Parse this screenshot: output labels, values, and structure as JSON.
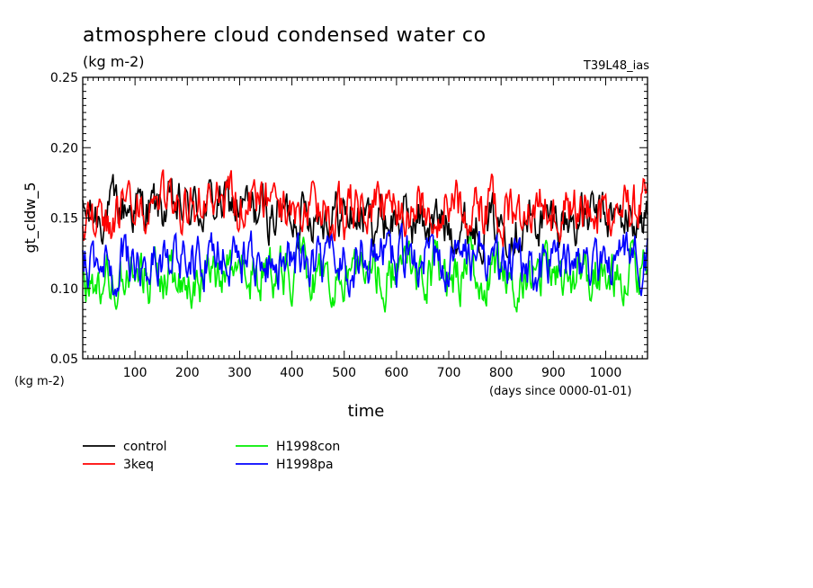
{
  "chart_data": {
    "type": "line",
    "title": "atmosphere cloud condensed water co",
    "units": "(kg m-2)",
    "run_label": "T39L48_ias",
    "xlabel": "time",
    "xunits": "(days since 0000-01-01)",
    "ylabel": "gt_cldw_5",
    "yunits": "(kg m-2)",
    "xlim": [
      0,
      1080
    ],
    "ylim": [
      0.05,
      0.25
    ],
    "xticks": [
      100,
      200,
      300,
      400,
      500,
      600,
      700,
      800,
      900,
      1000
    ],
    "xtick_labels": [
      "100",
      "200",
      "300",
      "400",
      "500",
      "600",
      "700",
      "800",
      "900",
      "1000"
    ],
    "yticks": [
      0.05,
      0.1,
      0.15,
      0.2,
      0.25
    ],
    "ytick_labels": [
      "0.05",
      "0.10",
      "0.15",
      "0.20",
      "0.25"
    ],
    "grid": false,
    "legend_position": "bottom-left",
    "series": [
      {
        "name": "control",
        "color": "#000000",
        "x": [
          0,
          90,
          180,
          270,
          360,
          450,
          540,
          630,
          720,
          810,
          900,
          990,
          1080
        ],
        "values": [
          0.15,
          0.158,
          0.155,
          0.16,
          0.152,
          0.155,
          0.15,
          0.148,
          0.145,
          0.146,
          0.148,
          0.15,
          0.148
        ]
      },
      {
        "name": "3keq",
        "color": "#ff0000",
        "x": [
          0,
          90,
          180,
          270,
          360,
          450,
          540,
          630,
          720,
          810,
          900,
          990,
          1080
        ],
        "values": [
          0.152,
          0.15,
          0.16,
          0.162,
          0.158,
          0.152,
          0.155,
          0.16,
          0.158,
          0.153,
          0.158,
          0.155,
          0.156
        ]
      },
      {
        "name": "H1998con",
        "color": "#00ee00",
        "x": [
          0,
          90,
          180,
          270,
          360,
          450,
          540,
          630,
          720,
          810,
          900,
          990,
          1080
        ],
        "values": [
          0.11,
          0.108,
          0.105,
          0.11,
          0.112,
          0.108,
          0.11,
          0.112,
          0.11,
          0.108,
          0.11,
          0.112,
          0.11
        ]
      },
      {
        "name": "H1998pa",
        "color": "#0000ff",
        "x": [
          0,
          90,
          180,
          270,
          360,
          450,
          540,
          630,
          720,
          810,
          900,
          990,
          1080
        ],
        "values": [
          0.118,
          0.12,
          0.118,
          0.12,
          0.119,
          0.12,
          0.118,
          0.12,
          0.119,
          0.118,
          0.117,
          0.118,
          0.12
        ]
      }
    ],
    "noise_amplitude": 0.018
  }
}
